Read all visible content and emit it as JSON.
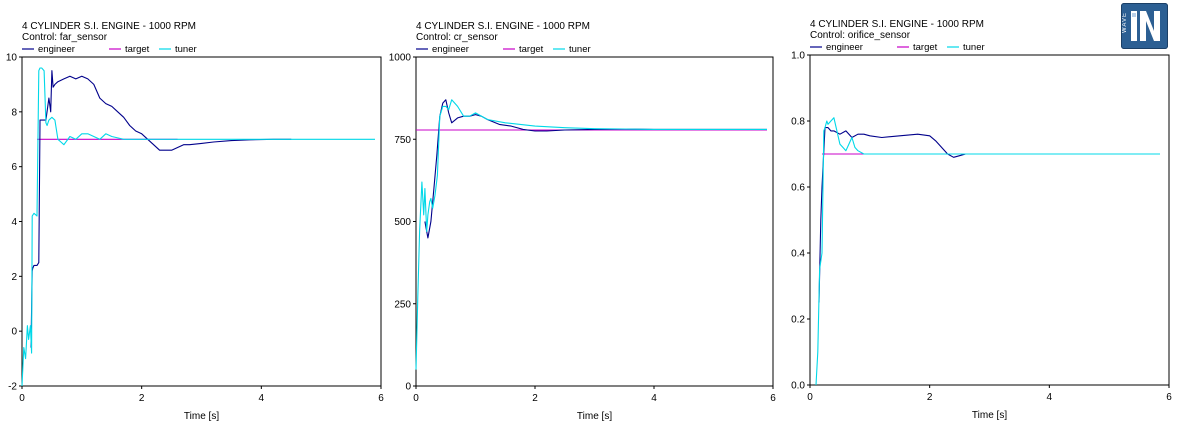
{
  "logo": {
    "word": "WAVE"
  },
  "legend_labels": [
    "engineer",
    "target",
    "tuner"
  ],
  "colors": {
    "engineer": "#00008b",
    "target": "#c800c8",
    "tuner": "#00d8e8",
    "axis": "#000000"
  },
  "chart_data": [
    {
      "type": "line",
      "title": "4 CYLINDER S.I. ENGINE - 1000 RPM",
      "subtitle": "Control: far_sensor",
      "xlabel": "Time  [s]",
      "ylabel": "",
      "xlim": [
        0,
        6
      ],
      "ylim": [
        -2,
        10
      ],
      "xticks": [
        "0",
        "2",
        "4",
        "6"
      ],
      "yticks": [
        "-2",
        "0",
        "2",
        "4",
        "6",
        "8",
        "10"
      ],
      "legend_position": "top-left",
      "series": [
        {
          "name": "engineer",
          "color": "#00008b",
          "x": [
            0.15,
            0.17,
            0.18,
            0.2,
            0.25,
            0.28,
            0.3,
            0.3,
            0.35,
            0.4,
            0.45,
            0.48,
            0.5,
            0.52,
            0.55,
            0.6,
            0.7,
            0.8,
            0.9,
            1.0,
            1.1,
            1.2,
            1.3,
            1.4,
            1.5,
            1.6,
            1.7,
            1.8,
            1.9,
            2.0,
            2.1,
            2.2,
            2.3,
            2.4,
            2.5,
            2.6,
            2.7,
            2.8,
            3.0,
            3.2,
            3.5,
            3.8,
            4.2,
            4.5
          ],
          "y": [
            -0.6,
            2.2,
            2.3,
            2.4,
            2.4,
            2.5,
            7.6,
            7.7,
            7.7,
            7.7,
            8.5,
            8.0,
            9.5,
            8.9,
            9.0,
            9.1,
            9.2,
            9.3,
            9.2,
            9.3,
            9.2,
            9.0,
            8.5,
            8.3,
            8.2,
            8.0,
            7.8,
            7.5,
            7.3,
            7.2,
            7.0,
            6.8,
            6.6,
            6.6,
            6.6,
            6.7,
            6.8,
            6.8,
            6.85,
            6.9,
            6.95,
            6.98,
            7.0,
            7.0
          ]
        },
        {
          "name": "target",
          "color": "#c800c8",
          "x": [
            0.25,
            2.6
          ],
          "y": [
            7.0,
            7.0
          ]
        },
        {
          "name": "tuner",
          "color": "#00d8e8",
          "x": [
            0.0,
            0.03,
            0.06,
            0.09,
            0.11,
            0.14,
            0.16,
            0.17,
            0.2,
            0.25,
            0.28,
            0.3,
            0.33,
            0.37,
            0.4,
            0.42,
            0.45,
            0.5,
            0.55,
            0.6,
            0.65,
            0.7,
            0.8,
            0.9,
            1.0,
            1.1,
            1.2,
            1.3,
            1.4,
            1.5,
            1.6,
            1.7,
            1.8,
            1.9,
            2.0,
            2.2,
            2.5,
            3.0,
            4.0,
            5.0,
            5.9
          ],
          "y": [
            -2.0,
            -0.6,
            -1.0,
            0.2,
            -0.3,
            0.2,
            -0.8,
            4.2,
            4.3,
            4.2,
            9.5,
            9.6,
            9.6,
            9.5,
            7.6,
            7.5,
            7.7,
            7.8,
            7.7,
            7.0,
            6.9,
            6.8,
            7.1,
            7.0,
            7.2,
            7.2,
            7.1,
            7.0,
            7.2,
            7.1,
            7.05,
            7.0,
            7.0,
            7.0,
            7.0,
            7.0,
            7.0,
            7.0,
            7.0,
            7.0,
            7.0
          ]
        }
      ]
    },
    {
      "type": "line",
      "title": "4 CYLINDER S.I. ENGINE - 1000 RPM",
      "subtitle": "Control: cr_sensor",
      "xlabel": "Time  [s]",
      "ylabel": "",
      "xlim": [
        0,
        6
      ],
      "ylim": [
        0,
        1000
      ],
      "xticks": [
        "0",
        "2",
        "4",
        "6"
      ],
      "yticks": [
        "0",
        "250",
        "500",
        "750",
        "1000"
      ],
      "legend_position": "top-left",
      "series": [
        {
          "name": "engineer",
          "color": "#00008b",
          "x": [
            0.15,
            0.2,
            0.25,
            0.3,
            0.35,
            0.4,
            0.45,
            0.5,
            0.55,
            0.6,
            0.7,
            0.8,
            0.9,
            1.0,
            1.1,
            1.2,
            1.4,
            1.6,
            1.8,
            2.0,
            2.2,
            2.5,
            3.0,
            3.5,
            4.0,
            4.5,
            5.0,
            5.5,
            5.9
          ],
          "y": [
            500,
            450,
            500,
            600,
            700,
            820,
            860,
            870,
            830,
            800,
            815,
            820,
            820,
            825,
            820,
            810,
            795,
            790,
            780,
            775,
            775,
            778,
            780,
            781,
            780,
            780,
            780,
            780,
            780
          ]
        },
        {
          "name": "target",
          "color": "#c800c8",
          "x": [
            0.0,
            5.9
          ],
          "y": [
            778,
            778
          ]
        },
        {
          "name": "tuner",
          "color": "#00d8e8",
          "x": [
            0.0,
            0.03,
            0.06,
            0.1,
            0.13,
            0.15,
            0.18,
            0.2,
            0.23,
            0.25,
            0.28,
            0.32,
            0.36,
            0.4,
            0.45,
            0.5,
            0.55,
            0.6,
            0.7,
            0.8,
            0.9,
            1.0,
            1.2,
            1.5,
            2.0,
            2.5,
            3.0,
            4.0,
            5.0,
            5.9
          ],
          "y": [
            50,
            270,
            470,
            620,
            520,
            600,
            470,
            520,
            560,
            570,
            540,
            580,
            640,
            820,
            850,
            850,
            840,
            870,
            850,
            820,
            820,
            830,
            810,
            800,
            790,
            785,
            782,
            780,
            780,
            780
          ]
        }
      ]
    },
    {
      "type": "line",
      "title": "4 CYLINDER S.I. ENGINE - 1000 RPM",
      "subtitle": "Control: orifice_sensor",
      "xlabel": "Time  [s]",
      "ylabel": "",
      "xlim": [
        0,
        6
      ],
      "ylim": [
        0.0,
        1.0
      ],
      "xticks": [
        "0",
        "2",
        "4",
        "6"
      ],
      "yticks": [
        "0.0",
        "0.2",
        "0.4",
        "0.6",
        "0.8",
        "1.0"
      ],
      "legend_position": "top-left",
      "series": [
        {
          "name": "engineer",
          "color": "#00008b",
          "x": [
            0.15,
            0.18,
            0.2,
            0.25,
            0.3,
            0.35,
            0.4,
            0.5,
            0.6,
            0.7,
            0.8,
            0.9,
            1.0,
            1.2,
            1.5,
            1.8,
            2.0,
            2.1,
            2.2,
            2.3,
            2.4,
            2.5,
            2.6,
            2.7,
            2.8,
            3.0
          ],
          "y": [
            0.25,
            0.5,
            0.6,
            0.78,
            0.78,
            0.77,
            0.77,
            0.76,
            0.77,
            0.75,
            0.76,
            0.76,
            0.755,
            0.75,
            0.755,
            0.76,
            0.755,
            0.74,
            0.72,
            0.7,
            0.69,
            0.695,
            0.7,
            0.7,
            0.7,
            0.7
          ]
        },
        {
          "name": "target",
          "color": "#c800c8",
          "x": [
            0.2,
            1.2
          ],
          "y": [
            0.7,
            0.7
          ]
        },
        {
          "name": "tuner",
          "color": "#00d8e8",
          "x": [
            0.1,
            0.13,
            0.16,
            0.2,
            0.23,
            0.25,
            0.28,
            0.3,
            0.35,
            0.4,
            0.45,
            0.5,
            0.55,
            0.6,
            0.65,
            0.7,
            0.75,
            0.8,
            0.9,
            1.0,
            1.5,
            2.0,
            3.0,
            4.0,
            5.0,
            5.85
          ],
          "y": [
            0.0,
            0.1,
            0.35,
            0.4,
            0.77,
            0.78,
            0.8,
            0.79,
            0.8,
            0.81,
            0.77,
            0.73,
            0.72,
            0.71,
            0.73,
            0.75,
            0.72,
            0.71,
            0.7,
            0.7,
            0.7,
            0.7,
            0.7,
            0.7,
            0.7,
            0.7
          ]
        }
      ]
    }
  ]
}
